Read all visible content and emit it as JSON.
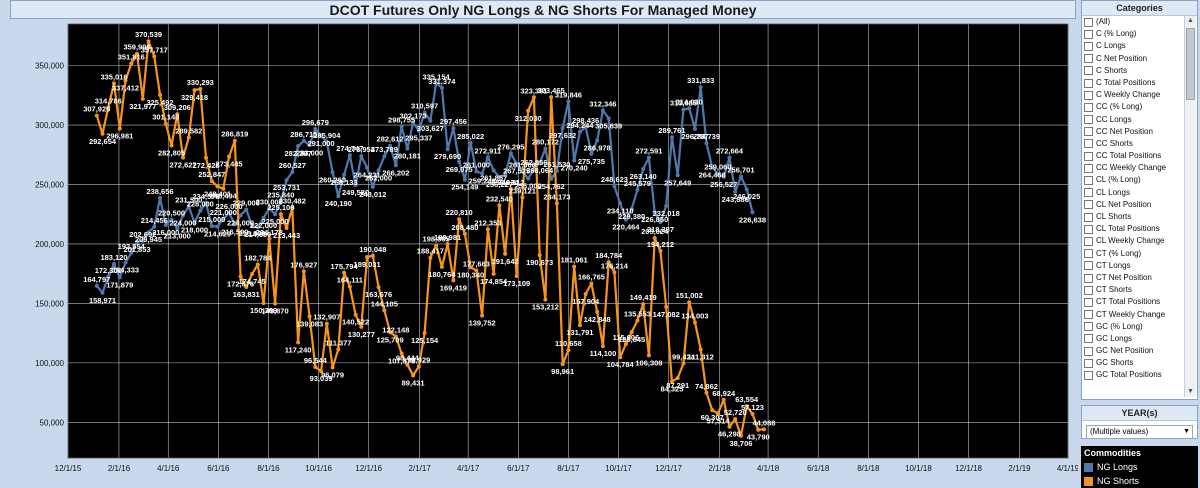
{
  "title": "DCOT Futures Only NG Longs & NG Shorts For Managed Money",
  "panel": {
    "categories_header": "Categories",
    "categories": [
      "(All)",
      "C (% Long)",
      "C Longs",
      "C Net Position",
      "C Shorts",
      "C Total Positions",
      "C Weekly Change",
      "CC (% Long)",
      "CC Longs",
      "CC Net Position",
      "CC Shorts",
      "CC Total Positions",
      "CC Weekly Change",
      "CL (% Long)",
      "CL Longs",
      "CL Net Position",
      "CL Shorts",
      "CL Total Positions",
      "CL Weekly Change",
      "CT (% Long)",
      "CT Longs",
      "CT Net Position",
      "CT Shorts",
      "CT Total Positions",
      "CT Weekly Change",
      "GC (% Long)",
      "GC Longs",
      "GC Net Position",
      "GC Shorts",
      "GC Total Positions"
    ],
    "year_header": "YEAR(s)",
    "year_value": "(Multiple values)",
    "legend_header": "Commodities"
  },
  "chart_data": {
    "type": "line",
    "title": "DCOT Futures Only NG Longs & NG Shorts For Managed Money",
    "background": "#000000",
    "gridlines": true,
    "x_ticks": [
      "12/1/15",
      "2/1/16",
      "4/1/16",
      "6/1/16",
      "8/1/16",
      "10/1/16",
      "12/1/16",
      "2/1/17",
      "4/1/17",
      "6/1/17",
      "8/1/17",
      "10/1/17",
      "12/1/17",
      "2/1/18",
      "4/1/18",
      "6/1/18",
      "8/1/18",
      "10/1/18",
      "12/1/18",
      "2/1/19",
      "4/1/19"
    ],
    "x_range": [
      "2015-12-01",
      "2019-04-01"
    ],
    "y_ticks": [
      "50,000",
      "100,000",
      "150,000",
      "200,000",
      "250,000",
      "300,000",
      "350,000"
    ],
    "ylim": [
      20000,
      385000
    ],
    "series": [
      {
        "name": "NG Longs",
        "color": "#4f79ad",
        "points": [
          [
            "2016-01-05",
            164797
          ],
          [
            "2016-01-12",
            158971
          ],
          [
            "2016-01-19",
            172300
          ],
          [
            "2016-01-26",
            183120
          ],
          [
            "2016-02-02",
            171879
          ],
          [
            "2016-02-09",
            184333
          ],
          [
            "2016-02-16",
            192554
          ],
          [
            "2016-02-23",
            201853
          ],
          [
            "2016-03-01",
            202692
          ],
          [
            "2016-03-08",
            209945
          ],
          [
            "2016-03-15",
            214456
          ],
          [
            "2016-03-22",
            238656
          ],
          [
            "2016-03-29",
            216000
          ],
          [
            "2016-04-05",
            220500
          ],
          [
            "2016-04-12",
            213000
          ],
          [
            "2016-04-19",
            224000
          ],
          [
            "2016-04-26",
            231500
          ],
          [
            "2016-05-03",
            218000
          ],
          [
            "2016-05-10",
            228000
          ],
          [
            "2016-05-17",
            234575
          ],
          [
            "2016-05-24",
            215000
          ],
          [
            "2016-05-31",
            214629
          ],
          [
            "2016-06-07",
            221000
          ],
          [
            "2016-06-14",
            226000
          ],
          [
            "2016-06-21",
            216500
          ],
          [
            "2016-06-28",
            224000
          ],
          [
            "2016-07-05",
            229000
          ],
          [
            "2016-07-12",
            215000
          ],
          [
            "2016-07-19",
            214090
          ],
          [
            "2016-07-26",
            222000
          ],
          [
            "2016-08-02",
            230000
          ],
          [
            "2016-08-09",
            225000
          ],
          [
            "2016-08-16",
            235840
          ],
          [
            "2016-08-23",
            253731
          ],
          [
            "2016-08-30",
            260527
          ],
          [
            "2016-09-06",
            282387
          ],
          [
            "2016-09-13",
            286715
          ],
          [
            "2016-09-20",
            283000
          ],
          [
            "2016-09-27",
            296679
          ],
          [
            "2016-10-04",
            291000
          ],
          [
            "2016-10-11",
            285904
          ],
          [
            "2016-10-18",
            260263
          ],
          [
            "2016-10-25",
            240190
          ],
          [
            "2016-11-01",
            258133
          ],
          [
            "2016-11-08",
            274747
          ],
          [
            "2016-11-15",
            249580
          ],
          [
            "2016-11-22",
            273954
          ],
          [
            "2016-11-29",
            264231
          ],
          [
            "2016-12-06",
            248012
          ],
          [
            "2016-12-13",
            262000
          ],
          [
            "2016-12-20",
            273789
          ],
          [
            "2016-12-27",
            282612
          ],
          [
            "2017-01-03",
            266202
          ],
          [
            "2017-01-10",
            298755
          ],
          [
            "2017-01-17",
            280181
          ],
          [
            "2017-01-24",
            302173
          ],
          [
            "2017-01-31",
            295337
          ],
          [
            "2017-02-07",
            310597
          ],
          [
            "2017-02-14",
            303627
          ],
          [
            "2017-02-21",
            335154
          ],
          [
            "2017-02-28",
            331374
          ],
          [
            "2017-03-07",
            279690
          ],
          [
            "2017-03-14",
            297456
          ],
          [
            "2017-03-21",
            269075
          ],
          [
            "2017-03-28",
            254149
          ],
          [
            "2017-04-04",
            285022
          ],
          [
            "2017-04-11",
            261000
          ],
          [
            "2017-04-18",
            259248
          ],
          [
            "2017-04-25",
            272911
          ],
          [
            "2017-05-02",
            261857
          ],
          [
            "2017-05-09",
            256227
          ],
          [
            "2017-05-16",
            258034
          ],
          [
            "2017-05-23",
            276295
          ],
          [
            "2017-05-30",
            267525
          ],
          [
            "2017-06-06",
            261000
          ],
          [
            "2017-06-13",
            255000
          ],
          [
            "2017-06-20",
            262856
          ],
          [
            "2017-06-27",
            268064
          ],
          [
            "2017-07-04",
            280172
          ],
          [
            "2017-07-11",
            254762
          ],
          [
            "2017-07-18",
            261530
          ],
          [
            "2017-07-25",
            297632
          ],
          [
            "2017-08-01",
            319846
          ],
          [
            "2017-08-08",
            270240
          ],
          [
            "2017-08-15",
            294244
          ],
          [
            "2017-08-22",
            298436
          ],
          [
            "2017-08-29",
            275735
          ],
          [
            "2017-09-05",
            286978
          ],
          [
            "2017-09-12",
            312346
          ],
          [
            "2017-09-19",
            305639
          ],
          [
            "2017-09-26",
            248623
          ],
          [
            "2017-10-03",
            234110
          ],
          [
            "2017-10-10",
            220464
          ],
          [
            "2017-10-17",
            229380
          ],
          [
            "2017-10-24",
            245579
          ],
          [
            "2017-10-31",
            263140
          ],
          [
            "2017-11-07",
            272591
          ],
          [
            "2017-11-14",
            226850
          ],
          [
            "2017-11-21",
            218387
          ],
          [
            "2017-11-28",
            232018
          ],
          [
            "2017-12-05",
            289761
          ],
          [
            "2017-12-12",
            257649
          ],
          [
            "2017-12-19",
            313085
          ],
          [
            "2017-12-26",
            314030
          ],
          [
            "2018-01-02",
            296757
          ],
          [
            "2018-01-09",
            331833
          ],
          [
            "2018-01-16",
            284739
          ],
          [
            "2018-01-23",
            264468
          ],
          [
            "2018-01-30",
            259060
          ],
          [
            "2018-02-06",
            256527
          ],
          [
            "2018-02-13",
            272664
          ],
          [
            "2018-02-20",
            243886
          ],
          [
            "2018-02-27",
            256701
          ],
          [
            "2018-03-06",
            246025
          ],
          [
            "2018-03-13",
            226638
          ]
        ]
      },
      {
        "name": "NG Shorts",
        "color": "#f7941d",
        "points": [
          [
            "2016-01-05",
            307926
          ],
          [
            "2016-01-12",
            292654
          ],
          [
            "2016-01-19",
            314786
          ],
          [
            "2016-01-26",
            335016
          ],
          [
            "2016-02-02",
            296981
          ],
          [
            "2016-02-09",
            337412
          ],
          [
            "2016-02-16",
            351816
          ],
          [
            "2016-02-23",
            359996
          ],
          [
            "2016-03-01",
            321977
          ],
          [
            "2016-03-08",
            370539
          ],
          [
            "2016-03-15",
            357717
          ],
          [
            "2016-03-22",
            325492
          ],
          [
            "2016-03-29",
            301140
          ],
          [
            "2016-04-05",
            282805
          ],
          [
            "2016-04-12",
            309206
          ],
          [
            "2016-04-19",
            272627
          ],
          [
            "2016-04-26",
            289582
          ],
          [
            "2016-05-03",
            329418
          ],
          [
            "2016-05-10",
            330293
          ],
          [
            "2016-05-17",
            272428
          ],
          [
            "2016-05-24",
            252847
          ],
          [
            "2016-05-31",
            248401
          ],
          [
            "2016-06-07",
            246494
          ],
          [
            "2016-06-14",
            273445
          ],
          [
            "2016-06-21",
            286819
          ],
          [
            "2016-06-28",
            172676
          ],
          [
            "2016-07-05",
            163831
          ],
          [
            "2016-07-12",
            174745
          ],
          [
            "2016-07-19",
            182784
          ],
          [
            "2016-07-26",
            150309
          ],
          [
            "2016-08-02",
            204178
          ],
          [
            "2016-08-09",
            149870
          ],
          [
            "2016-08-16",
            225108
          ],
          [
            "2016-08-23",
            213443
          ],
          [
            "2016-08-30",
            230482
          ],
          [
            "2016-09-06",
            117240
          ],
          [
            "2016-09-13",
            176927
          ],
          [
            "2016-09-20",
            139083
          ],
          [
            "2016-09-27",
            96544
          ],
          [
            "2016-10-04",
            93039
          ],
          [
            "2016-10-11",
            132907
          ],
          [
            "2016-10-18",
            96079
          ],
          [
            "2016-10-25",
            111377
          ],
          [
            "2016-11-01",
            175794
          ],
          [
            "2016-11-08",
            164111
          ],
          [
            "2016-11-15",
            140522
          ],
          [
            "2016-11-22",
            130277
          ],
          [
            "2016-11-29",
            189031
          ],
          [
            "2016-12-06",
            190048
          ],
          [
            "2016-12-13",
            163676
          ],
          [
            "2016-12-20",
            144105
          ],
          [
            "2016-12-27",
            125709
          ],
          [
            "2017-01-03",
            122148
          ],
          [
            "2017-01-10",
            107878
          ],
          [
            "2017-01-17",
            98444
          ],
          [
            "2017-01-24",
            89431
          ],
          [
            "2017-01-31",
            96929
          ],
          [
            "2017-02-07",
            125154
          ],
          [
            "2017-02-14",
            188417
          ],
          [
            "2017-02-21",
            198865
          ],
          [
            "2017-02-28",
            180764
          ],
          [
            "2017-03-07",
            199981
          ],
          [
            "2017-03-14",
            169419
          ],
          [
            "2017-03-21",
            220810
          ],
          [
            "2017-03-28",
            208480
          ],
          [
            "2017-04-04",
            180340
          ],
          [
            "2017-04-11",
            177663
          ],
          [
            "2017-04-18",
            139752
          ],
          [
            "2017-04-25",
            212353
          ],
          [
            "2017-05-02",
            174854
          ],
          [
            "2017-05-09",
            232540
          ],
          [
            "2017-05-16",
            191642
          ],
          [
            "2017-05-23",
            246312
          ],
          [
            "2017-05-30",
            173109
          ],
          [
            "2017-06-06",
            239121
          ],
          [
            "2017-06-13",
            312030
          ],
          [
            "2017-06-20",
            323381
          ],
          [
            "2017-06-27",
            190673
          ],
          [
            "2017-07-04",
            153212
          ],
          [
            "2017-07-11",
            323465
          ],
          [
            "2017-07-18",
            234173
          ],
          [
            "2017-07-25",
            98961
          ],
          [
            "2017-08-01",
            110658
          ],
          [
            "2017-08-08",
            181061
          ],
          [
            "2017-08-15",
            131791
          ],
          [
            "2017-08-22",
            157904
          ],
          [
            "2017-08-29",
            166765
          ],
          [
            "2017-09-05",
            142848
          ],
          [
            "2017-09-12",
            114100
          ],
          [
            "2017-09-19",
            184784
          ],
          [
            "2017-09-26",
            176214
          ],
          [
            "2017-10-03",
            104784
          ],
          [
            "2017-10-10",
            115906
          ],
          [
            "2017-10-17",
            125845
          ],
          [
            "2017-10-24",
            135553
          ],
          [
            "2017-10-31",
            149419
          ],
          [
            "2017-11-07",
            106308
          ],
          [
            "2017-11-14",
            205024
          ],
          [
            "2017-11-21",
            194212
          ],
          [
            "2017-11-28",
            147082
          ],
          [
            "2017-12-05",
            84325
          ],
          [
            "2017-12-12",
            87291
          ],
          [
            "2017-12-19",
            99424
          ],
          [
            "2017-12-26",
            151002
          ],
          [
            "2018-01-02",
            134003
          ],
          [
            "2018-01-09",
            111312
          ],
          [
            "2018-01-16",
            74862
          ],
          [
            "2018-01-23",
            60307
          ],
          [
            "2018-01-30",
            57514
          ],
          [
            "2018-02-06",
            68924
          ],
          [
            "2018-02-13",
            46298
          ],
          [
            "2018-02-20",
            52720
          ],
          [
            "2018-02-27",
            38706
          ],
          [
            "2018-03-06",
            63554
          ],
          [
            "2018-03-13",
            57123
          ],
          [
            "2018-03-20",
            43790
          ],
          [
            "2018-03-27",
            44088
          ]
        ]
      }
    ]
  }
}
